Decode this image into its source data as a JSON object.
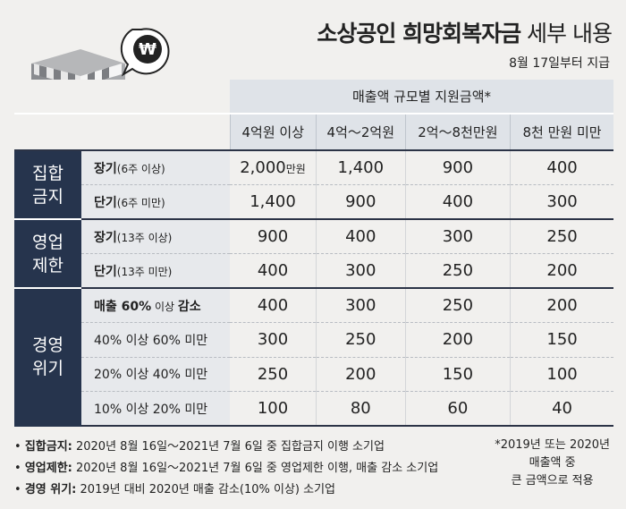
{
  "title_bold": "소상공인 희망회복자금",
  "title_light": " 세부 내용",
  "subtitle": "8월 17일부터 지급",
  "icon": {
    "coin_symbol": "₩"
  },
  "table": {
    "super_header": "매출액 규모별 지원금액*",
    "columns": [
      "4억원 이상",
      "4억～2억원",
      "2억～8천만원",
      "8천 만원 미만"
    ],
    "groups": [
      {
        "name": "집합\n금지",
        "rows": [
          {
            "label": "장기",
            "sub": "(6주 이상)",
            "values": [
              "2,000",
              "1,400",
              "900",
              "400"
            ],
            "unit": "만원"
          },
          {
            "label": "단기",
            "sub": "(6주 미만)",
            "values": [
              "1,400",
              "900",
              "400",
              "300"
            ]
          }
        ]
      },
      {
        "name": "영업\n제한",
        "rows": [
          {
            "label": "장기",
            "sub": "(13주 이상)",
            "values": [
              "900",
              "400",
              "300",
              "250"
            ]
          },
          {
            "label": "단기",
            "sub": "(13주 미만)",
            "values": [
              "400",
              "300",
              "250",
              "200"
            ]
          }
        ]
      },
      {
        "name": "경영\n위기",
        "rows": [
          {
            "label": "매출 60%",
            "sub": " 이상 ",
            "label2": "감소",
            "values": [
              "400",
              "300",
              "250",
              "200"
            ]
          },
          {
            "label": "40% 이상 60% 미만",
            "values": [
              "300",
              "250",
              "200",
              "150"
            ]
          },
          {
            "label": "20% 이상 40% 미만",
            "values": [
              "250",
              "200",
              "150",
              "100"
            ]
          },
          {
            "label": "10% 이상 20% 미만",
            "values": [
              "100",
              "80",
              "60",
              "40"
            ]
          }
        ]
      }
    ]
  },
  "notes": [
    {
      "bold": "집합금지:",
      "text": " 2020년 8월 16일～2021년 7월 6일 중 집합금지 이행 소기업"
    },
    {
      "bold": "영업제한:",
      "text": " 2020년 8월 16일～2021년 7월 6일 중 영업제한 이행, 매출 감소 소기업"
    },
    {
      "bold": "경영 위기:",
      "text": " 2019년 대비 2020년 매출 감소(10% 이상) 소기업"
    }
  ],
  "footnote": [
    "*2019년 또는 2020년",
    "매출액 중",
    "큰 금액으로 적용"
  ]
}
